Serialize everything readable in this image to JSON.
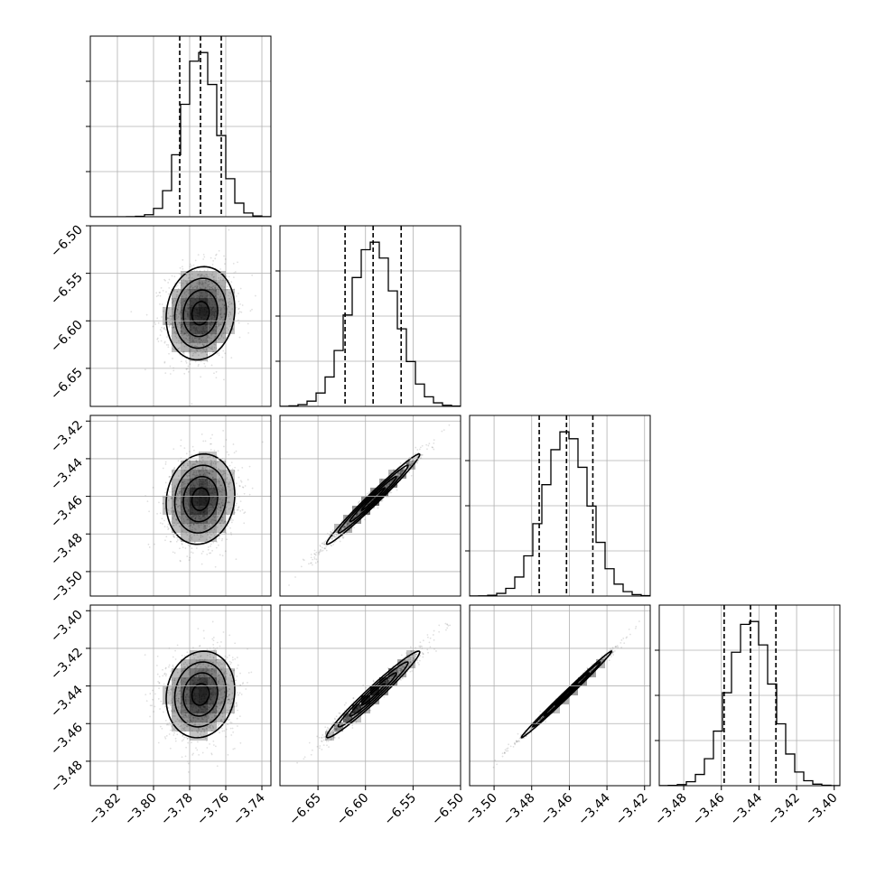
{
  "chart_data": {
    "type": "corner",
    "title": "",
    "parameters": 4,
    "axes": [
      {
        "range": [
          -3.835,
          -3.735
        ],
        "ticks": [
          -3.82,
          -3.8,
          -3.78,
          -3.76,
          -3.74
        ],
        "tick_labels": [
          "−3.82",
          "−3.80",
          "−3.78",
          "−3.76",
          "−3.74"
        ],
        "center": -3.774,
        "sd": 0.0095,
        "quantiles": [
          -3.7855,
          -3.774,
          -3.7625
        ]
      },
      {
        "range": [
          -6.69,
          -6.5
        ],
        "ticks": [
          -6.65,
          -6.6,
          -6.55,
          -6.5
        ],
        "tick_labels": [
          "−6.65",
          "−6.60",
          "−6.55",
          "−6.50"
        ],
        "center": -6.592,
        "sd": 0.0245,
        "quantiles": [
          -6.6215,
          -6.592,
          -6.5625
        ]
      },
      {
        "range": [
          -3.513,
          -3.417
        ],
        "ticks": [
          -3.5,
          -3.48,
          -3.46,
          -3.44,
          -3.42
        ],
        "tick_labels": [
          "−3.50",
          "−3.48",
          "−3.46",
          "−3.44",
          "−3.42"
        ],
        "center": -3.4615,
        "sd": 0.012,
        "quantiles": [
          -3.476,
          -3.4615,
          -3.4475
        ]
      },
      {
        "range": [
          -3.493,
          -3.397
        ],
        "ticks": [
          -3.48,
          -3.46,
          -3.44,
          -3.42,
          -3.4
        ],
        "tick_labels": [
          "−3.48",
          "−3.46",
          "−3.44",
          "−3.42",
          "−3.40"
        ],
        "center": -3.4445,
        "sd": 0.0115,
        "quantiles": [
          -3.4585,
          -3.4445,
          -3.431
        ]
      }
    ],
    "correlations": [
      [
        1,
        0.1,
        0.1,
        0.1
      ],
      [
        0.1,
        1,
        0.985,
        0.975
      ],
      [
        0.1,
        0.985,
        1,
        0.995
      ],
      [
        0.1,
        0.975,
        0.995,
        1
      ]
    ],
    "histogram_bins": 20,
    "grid": true,
    "colors": {
      "ink": "#000000",
      "grid": "#b0b0b0",
      "density": "#000000"
    }
  }
}
